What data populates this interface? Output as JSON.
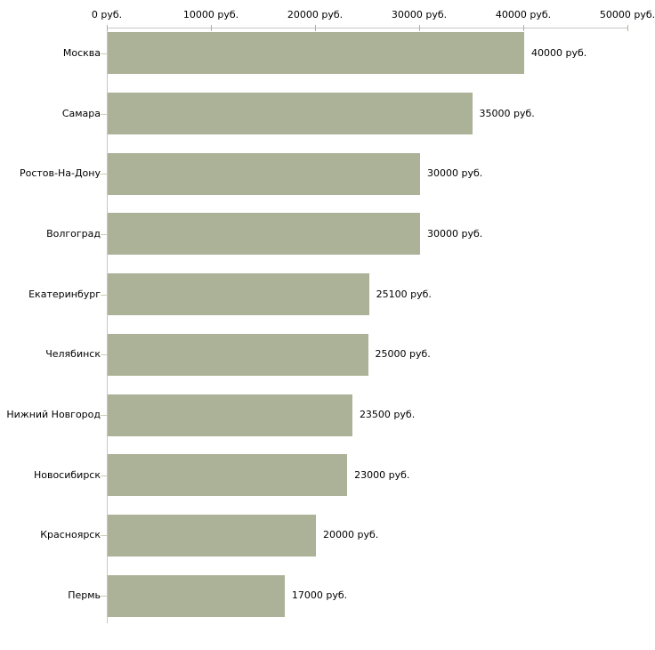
{
  "chart_data": {
    "type": "bar",
    "orientation": "horizontal",
    "title": "",
    "xlabel": "",
    "ylabel": "",
    "unit": "руб.",
    "categories": [
      "Москва",
      "Самара",
      "Ростов-На-Дону",
      "Волгоград",
      "Екатеринбург",
      "Челябинск",
      "Нижний Новгород",
      "Новосибирск",
      "Красноярск",
      "Пермь"
    ],
    "values": [
      40000,
      35000,
      30000,
      30000,
      25100,
      25000,
      23500,
      23000,
      20000,
      17000
    ],
    "value_labels": [
      "40000 руб.",
      "35000 руб.",
      "30000 руб.",
      "30000 руб.",
      "25100 руб.",
      "25000 руб.",
      "23500 руб.",
      "23000 руб.",
      "20000 руб.",
      "17000 руб."
    ],
    "x_ticks": [
      "0 руб.",
      "10000 руб.",
      "20000 руб.",
      "30000 руб.",
      "40000 руб.",
      "50000 руб."
    ],
    "x_tick_values": [
      0,
      10000,
      20000,
      30000,
      40000,
      50000
    ],
    "xlim": [
      0,
      50000
    ],
    "grid": false,
    "legend": null,
    "bar_color": "#abb297",
    "axis_color": "#c6c6c6",
    "tick_color": "#b3b194",
    "category_tick_color": "#cfccb2",
    "text_color": "#000000",
    "background_color": "#ffffff"
  }
}
